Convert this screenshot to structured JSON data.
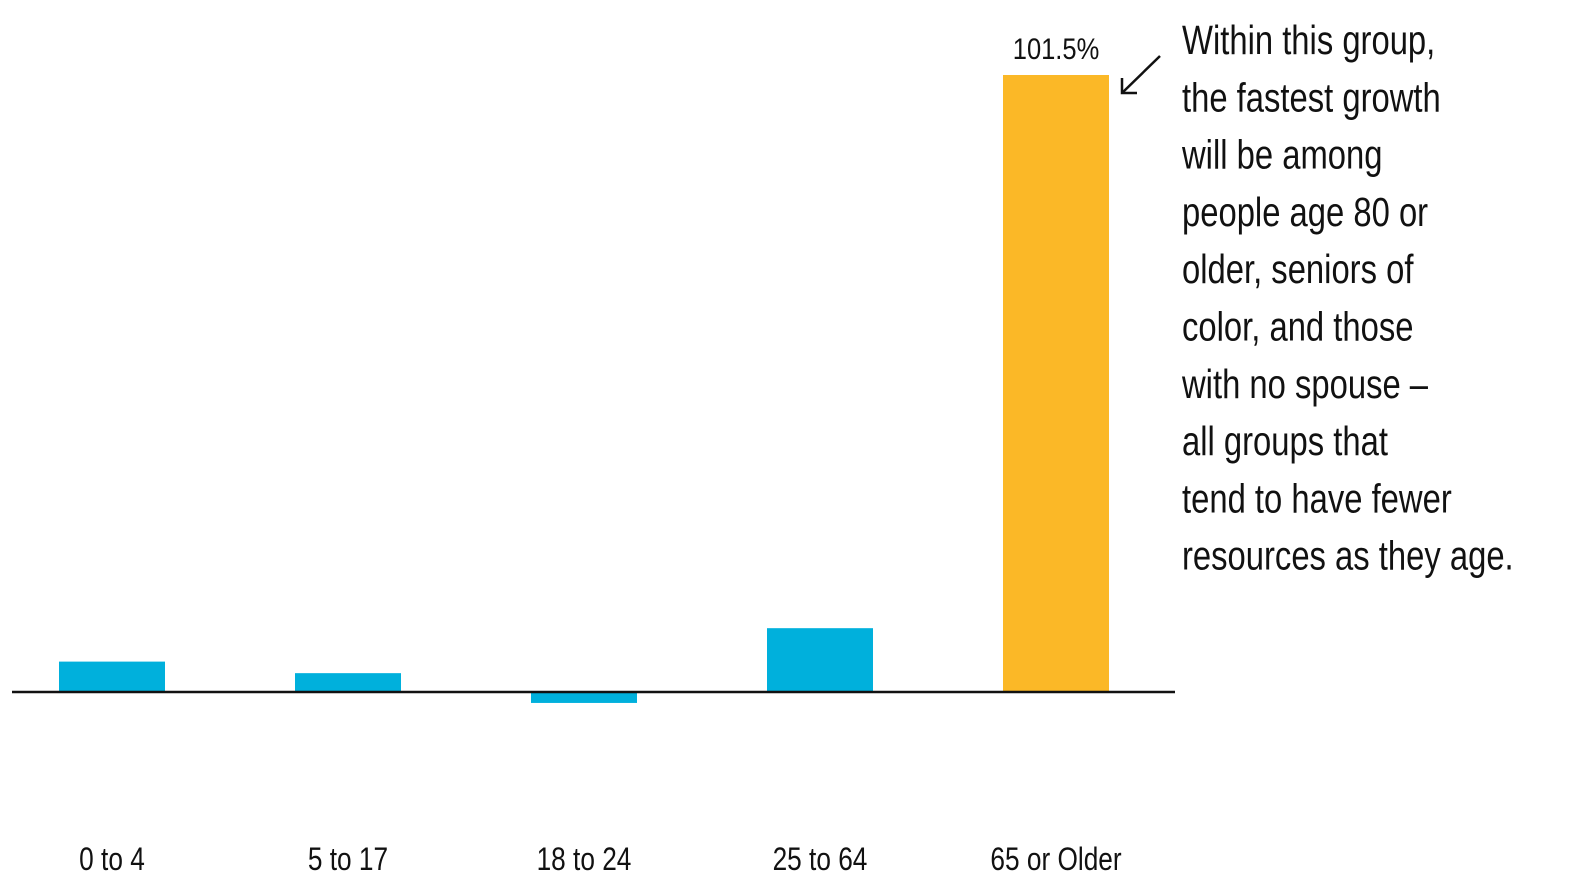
{
  "chart_data": {
    "type": "bar",
    "categories": [
      "0 to 4",
      "5 to 17",
      "18 to 24",
      "25 to 64",
      "65 or Older"
    ],
    "values": [
      5.0,
      3.1,
      -1.8,
      10.5,
      101.5
    ],
    "value_labels": [
      null,
      null,
      null,
      null,
      "101.5%"
    ],
    "colors": [
      "#00b0dc",
      "#00b0dc",
      "#00b0dc",
      "#00b0dc",
      "#fbb827"
    ],
    "annotation": [
      "Within this group,",
      "the fastest growth",
      "will be among",
      "people age 80 or",
      "older, seniors of",
      "color, and those",
      "with no spouse –",
      "all groups that",
      "tend to have fewer",
      "resources as they age."
    ]
  }
}
